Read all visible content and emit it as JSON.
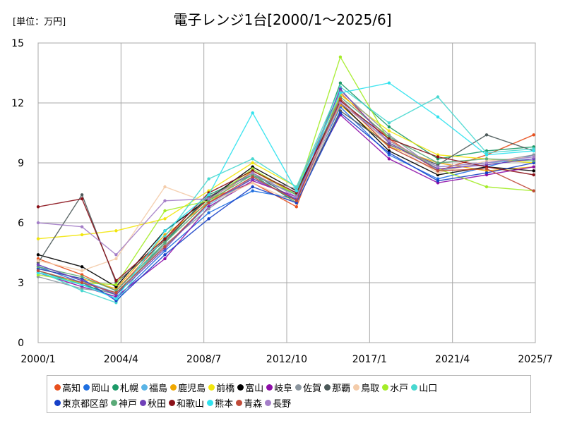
{
  "chart_data": {
    "type": "line",
    "title": "電子レンジ1台[2000/1～2025/6]",
    "unit_label": "[単位：万円]",
    "xlabel": "",
    "ylabel": "",
    "xlim": [
      "2000/1",
      "2025/7"
    ],
    "ylim": [
      0,
      15
    ],
    "y_ticks": [
      "0",
      "3",
      "6",
      "9",
      "12",
      "15"
    ],
    "x_ticks": [
      "2000/1",
      "2004/4",
      "2008/7",
      "2012/10",
      "2017/1",
      "2021/4",
      "2025/7"
    ],
    "grid": true,
    "legend_position": "bottom",
    "series": [
      {
        "name": "高知",
        "color": "#e8501e",
        "values": [
          4.2,
          3.4,
          2.6,
          5.2,
          7.2,
          8.0,
          6.8,
          12.5,
          10.2,
          8.6,
          9.4,
          10.4
        ]
      },
      {
        "name": "岡山",
        "color": "#1f6fe0",
        "values": [
          3.8,
          3.0,
          2.2,
          4.6,
          6.5,
          7.6,
          7.2,
          11.8,
          9.4,
          8.2,
          8.8,
          9.4
        ]
      },
      {
        "name": "札幌",
        "color": "#1c9a68",
        "values": [
          3.6,
          2.9,
          2.4,
          5.0,
          7.4,
          8.4,
          7.0,
          13.0,
          10.8,
          9.2,
          9.6,
          9.8
        ]
      },
      {
        "name": "福島",
        "color": "#5ab4e6",
        "values": [
          3.9,
          3.1,
          2.5,
          4.8,
          6.9,
          8.2,
          7.5,
          12.2,
          10.0,
          8.8,
          9.0,
          9.2
        ]
      },
      {
        "name": "鹿児島",
        "color": "#f0a800",
        "values": [
          3.7,
          3.2,
          2.7,
          5.4,
          7.0,
          8.6,
          7.4,
          11.9,
          9.8,
          9.0,
          8.6,
          8.8
        ]
      },
      {
        "name": "前橋",
        "color": "#f2e60c",
        "values": [
          5.2,
          5.4,
          5.6,
          6.2,
          7.6,
          9.0,
          7.8,
          12.4,
          10.6,
          9.4,
          9.2,
          9.0
        ]
      },
      {
        "name": "富山",
        "color": "#000000",
        "values": [
          4.4,
          3.8,
          2.8,
          5.6,
          7.2,
          8.8,
          7.6,
          12.0,
          9.6,
          8.4,
          8.8,
          8.6
        ]
      },
      {
        "name": "岐阜",
        "color": "#8e0ea8",
        "values": [
          3.5,
          2.8,
          2.3,
          4.2,
          6.8,
          8.1,
          7.3,
          11.4,
          9.2,
          8.0,
          8.4,
          8.8
        ]
      },
      {
        "name": "佐賀",
        "color": "#8c969f",
        "values": [
          3.3,
          2.7,
          2.5,
          4.9,
          6.7,
          8.3,
          7.7,
          12.6,
          10.4,
          8.6,
          9.0,
          9.4
        ]
      },
      {
        "name": "那覇",
        "color": "#4d5a5a",
        "values": [
          4.0,
          7.4,
          3.0,
          5.1,
          7.3,
          8.5,
          7.1,
          11.6,
          9.9,
          8.9,
          10.4,
          9.6
        ]
      },
      {
        "name": "鳥取",
        "color": "#f4ccaa",
        "values": [
          4.1,
          3.6,
          4.2,
          7.8,
          7.0,
          8.0,
          7.0,
          12.0,
          10.0,
          8.5,
          9.1,
          9.3
        ]
      },
      {
        "name": "水戸",
        "color": "#a4ec28",
        "values": [
          3.4,
          3.0,
          2.9,
          6.6,
          7.1,
          8.7,
          7.4,
          14.3,
          10.1,
          8.7,
          7.8,
          7.6
        ]
      },
      {
        "name": "山口",
        "color": "#48d8d0",
        "values": [
          3.6,
          2.6,
          2.0,
          5.3,
          8.2,
          9.2,
          7.8,
          12.8,
          11.0,
          12.3,
          9.5,
          9.7
        ]
      },
      {
        "name": "東京都区部",
        "color": "#1640c8",
        "values": [
          3.7,
          3.2,
          2.1,
          4.4,
          6.2,
          7.8,
          7.0,
          11.5,
          9.5,
          8.1,
          8.5,
          9.0
        ]
      },
      {
        "name": "神戸",
        "color": "#5aaa78",
        "values": [
          3.8,
          3.3,
          2.6,
          5.0,
          7.1,
          8.4,
          7.4,
          12.3,
          10.3,
          9.0,
          9.2,
          9.1
        ]
      },
      {
        "name": "秋田",
        "color": "#7040b8",
        "values": [
          3.9,
          3.1,
          2.4,
          4.7,
          7.0,
          8.2,
          7.2,
          12.7,
          10.0,
          8.7,
          8.9,
          9.2
        ]
      },
      {
        "name": "和歌山",
        "color": "#8a1018",
        "values": [
          6.8,
          7.2,
          3.1,
          5.2,
          7.5,
          8.6,
          7.5,
          12.1,
          10.2,
          9.3,
          8.8,
          8.4
        ]
      },
      {
        "name": "熊本",
        "color": "#30e2ee",
        "values": [
          3.5,
          2.9,
          2.2,
          5.6,
          7.4,
          11.5,
          7.6,
          12.5,
          13.0,
          11.3,
          9.4,
          9.6
        ]
      },
      {
        "name": "青森",
        "color": "#c04a38",
        "values": [
          3.6,
          3.0,
          2.5,
          4.8,
          7.0,
          8.3,
          7.1,
          12.2,
          9.8,
          8.6,
          8.7,
          7.6
        ]
      },
      {
        "name": "長野",
        "color": "#a47ec8",
        "values": [
          6.0,
          5.8,
          4.4,
          7.1,
          7.2,
          8.5,
          7.3,
          12.0,
          10.1,
          8.8,
          9.0,
          9.3
        ]
      }
    ],
    "x": [
      "2000/1",
      "2002/4",
      "2004/1",
      "2006/7",
      "2008/10",
      "2011/1",
      "2013/4",
      "2015/7",
      "2018/1",
      "2020/7",
      "2023/1",
      "2025/6"
    ]
  }
}
